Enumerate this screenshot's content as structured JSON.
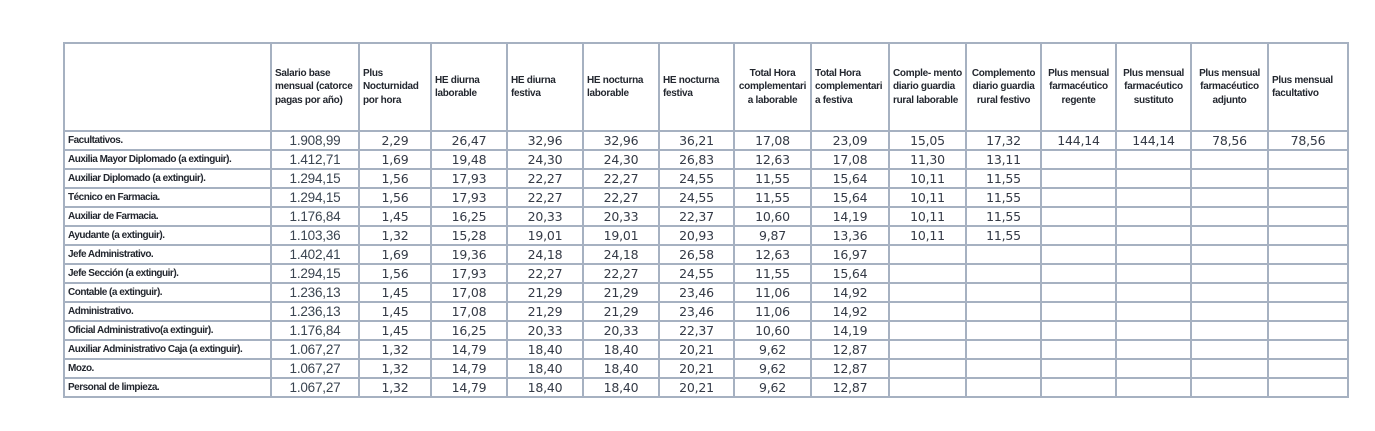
{
  "page": {
    "background_color": "#ffffff",
    "border_color": "#a6b1c1",
    "label_text_color": "#23272f",
    "value_text_color": "#343a46"
  },
  "table": {
    "title": "salary-table",
    "columns": [
      {
        "label": "Salario base mensual (catorce pagas por año)",
        "align": "left"
      },
      {
        "label": "Plus Nocturnidad por hora",
        "align": "left"
      },
      {
        "label": "HE diurna laborable",
        "align": "left"
      },
      {
        "label": "HE diurna festiva",
        "align": "left"
      },
      {
        "label": "HE nocturna laborable",
        "align": "left"
      },
      {
        "label": "HE nocturna festiva",
        "align": "left"
      },
      {
        "label": "Total Hora complementari a laborable",
        "align": "center"
      },
      {
        "label": "Total Hora complementari a festiva",
        "align": "left"
      },
      {
        "label": "Comple- mento diario guardia rural laborable",
        "align": "left"
      },
      {
        "label": "Complemento diario guardia rural festivo",
        "align": "center"
      },
      {
        "label": "Plus mensual farmacéutico regente",
        "align": "center"
      },
      {
        "label": "Plus mensual farmacéutico sustituto",
        "align": "center"
      },
      {
        "label": "Plus mensual farmacéutico adjunto",
        "align": "center"
      },
      {
        "label": "Plus mensual facultativo",
        "align": "left"
      }
    ],
    "rows": [
      {
        "label": "Facultativos.",
        "values": [
          "1.908,99",
          "2,29",
          "26,47",
          "32,96",
          "32,96",
          "36,21",
          "17,08",
          "23,09",
          "15,05",
          "17,32",
          "144,14",
          "144,14",
          "78,56",
          "78,56"
        ]
      },
      {
        "label": "Auxilia Mayor Diplomado (a extinguir).",
        "values": [
          "1.412,71",
          "1,69",
          "19,48",
          "24,30",
          "24,30",
          "26,83",
          "12,63",
          "17,08",
          "11,30",
          "13,11",
          "",
          "",
          "",
          ""
        ]
      },
      {
        "label": "Auxiliar Diplomado (a extinguir).",
        "values": [
          "1.294,15",
          "1,56",
          "17,93",
          "22,27",
          "22,27",
          "24,55",
          "11,55",
          "15,64",
          "10,11",
          "11,55",
          "",
          "",
          "",
          ""
        ]
      },
      {
        "label": "Técnico en Farmacia.",
        "values": [
          "1.294,15",
          "1,56",
          "17,93",
          "22,27",
          "22,27",
          "24,55",
          "11,55",
          "15,64",
          "10,11",
          "11,55",
          "",
          "",
          "",
          ""
        ]
      },
      {
        "label": "Auxiliar de Farmacia.",
        "values": [
          "1.176,84",
          "1,45",
          "16,25",
          "20,33",
          "20,33",
          "22,37",
          "10,60",
          "14,19",
          "10,11",
          "11,55",
          "",
          "",
          "",
          ""
        ]
      },
      {
        "label": "Ayudante (a extinguir).",
        "values": [
          "1.103,36",
          "1,32",
          "15,28",
          "19,01",
          "19,01",
          "20,93",
          "9,87",
          "13,36",
          "10,11",
          "11,55",
          "",
          "",
          "",
          ""
        ]
      },
      {
        "label": "Jefe Administrativo.",
        "values": [
          "1.402,41",
          "1,69",
          "19,36",
          "24,18",
          "24,18",
          "26,58",
          "12,63",
          "16,97",
          "",
          "",
          "",
          "",
          "",
          ""
        ]
      },
      {
        "label": "Jefe Sección (a extinguir).",
        "values": [
          "1.294,15",
          "1,56",
          "17,93",
          "22,27",
          "22,27",
          "24,55",
          "11,55",
          "15,64",
          "",
          "",
          "",
          "",
          "",
          ""
        ]
      },
      {
        "label": "Contable (a extinguir).",
        "values": [
          "1.236,13",
          "1,45",
          "17,08",
          "21,29",
          "21,29",
          "23,46",
          "11,06",
          "14,92",
          "",
          "",
          "",
          "",
          "",
          ""
        ]
      },
      {
        "label": "Administrativo.",
        "values": [
          "1.236,13",
          "1,45",
          "17,08",
          "21,29",
          "21,29",
          "23,46",
          "11,06",
          "14,92",
          "",
          "",
          "",
          "",
          "",
          ""
        ]
      },
      {
        "label": "Oficial Administrativo(a extinguir).",
        "values": [
          "1.176,84",
          "1,45",
          "16,25",
          "20,33",
          "20,33",
          "22,37",
          "10,60",
          "14,19",
          "",
          "",
          "",
          "",
          "",
          ""
        ]
      },
      {
        "label": "Auxiliar Administrativo Caja (a extinguir).",
        "values": [
          "1.067,27",
          "1,32",
          "14,79",
          "18,40",
          "18,40",
          "20,21",
          "9,62",
          "12,87",
          "",
          "",
          "",
          "",
          "",
          ""
        ]
      },
      {
        "label": "Mozo.",
        "values": [
          "1.067,27",
          "1,32",
          "14,79",
          "18,40",
          "18,40",
          "20,21",
          "9,62",
          "12,87",
          "",
          "",
          "",
          "",
          "",
          ""
        ]
      },
      {
        "label": "Personal de limpieza.",
        "values": [
          "1.067,27",
          "1,32",
          "14,79",
          "18,40",
          "18,40",
          "20,21",
          "9,62",
          "12,87",
          "",
          "",
          "",
          "",
          "",
          ""
        ]
      }
    ]
  }
}
